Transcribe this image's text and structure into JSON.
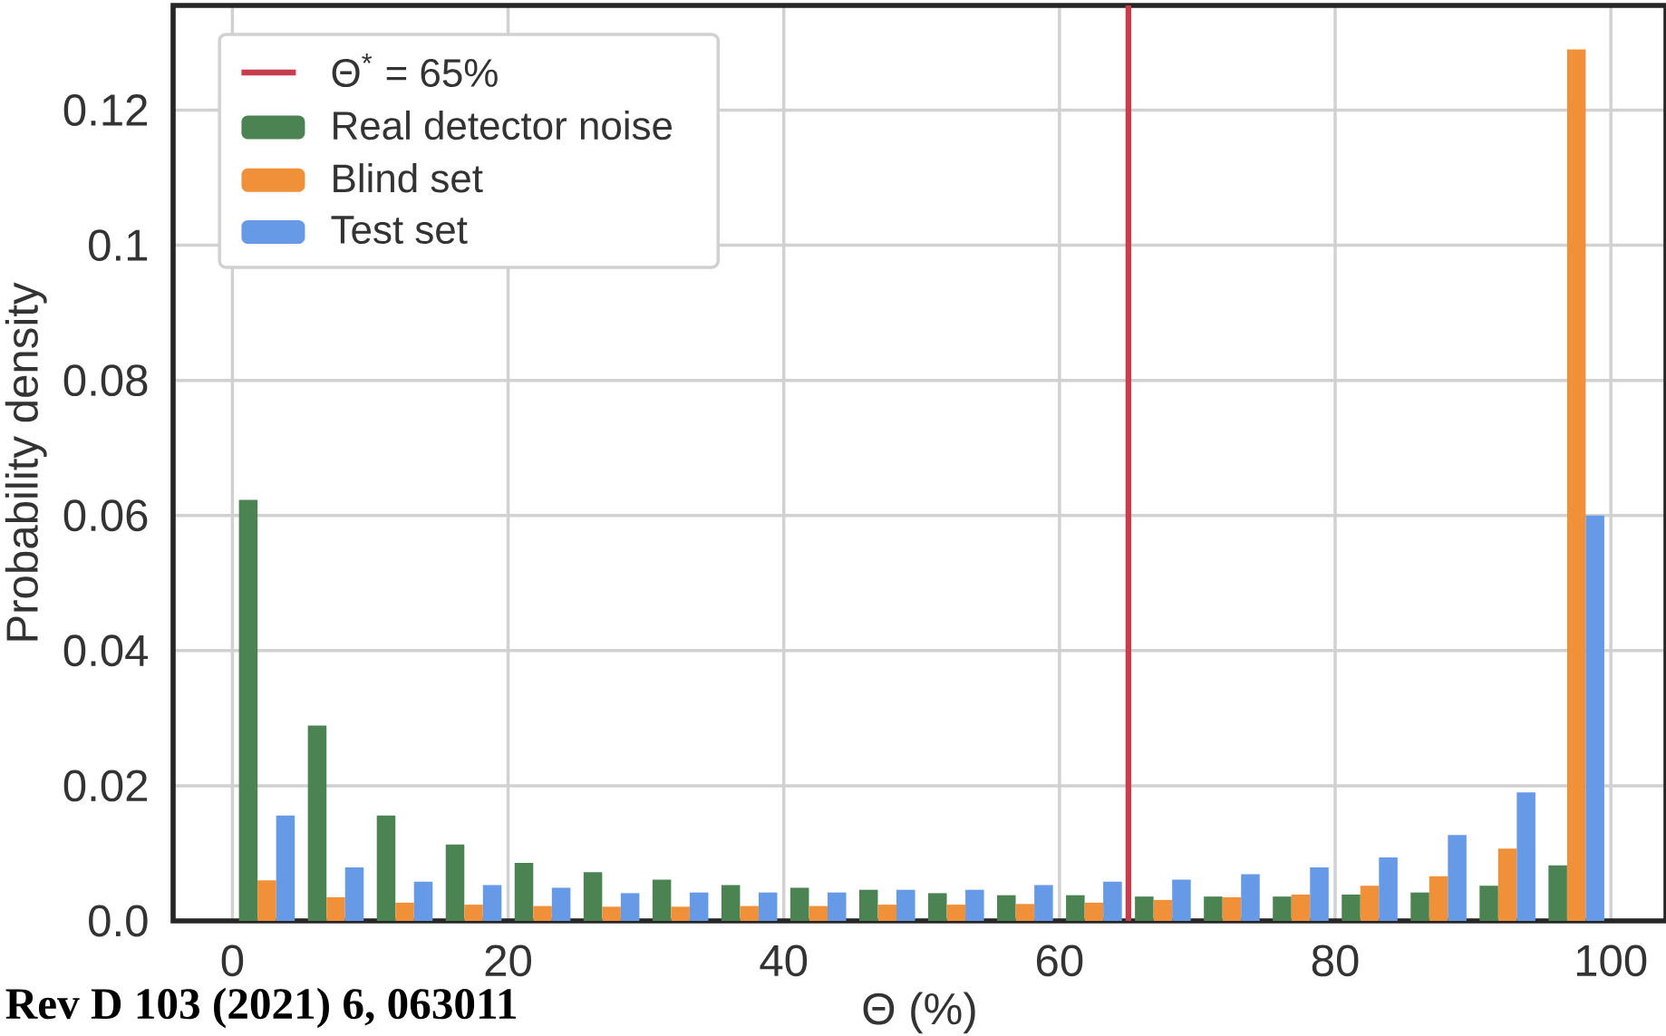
{
  "chart_data": {
    "type": "histogram",
    "xlabel": "Θ (%)",
    "ylabel": "Probability density",
    "bins": [
      0,
      5,
      10,
      15,
      20,
      25,
      30,
      35,
      40,
      45,
      50,
      55,
      60,
      65,
      70,
      75,
      80,
      85,
      90,
      95,
      100
    ],
    "series": [
      {
        "name": "Θ$^{*}$ = 65%",
        "type": "line",
        "color": "#c83c4b",
        "x": [
          65,
          65
        ],
        "values": [
          0,
          0.1355
        ]
      },
      {
        "name": "Real detector noise",
        "color": "#4b8452",
        "values": [
          0.0623,
          0.0289,
          0.0156,
          0.0113,
          0.0086,
          0.0072,
          0.0061,
          0.0053,
          0.0049,
          0.0046,
          0.0041,
          0.0038,
          0.0038,
          0.0036,
          0.0036,
          0.0036,
          0.0039,
          0.0042,
          0.0052,
          0.0082
        ]
      },
      {
        "name": "Blind set",
        "color": "#f0913a",
        "values": [
          0.006,
          0.0035,
          0.0027,
          0.0024,
          0.0022,
          0.0021,
          0.0021,
          0.0022,
          0.0022,
          0.0024,
          0.0024,
          0.0025,
          0.0027,
          0.0031,
          0.0035,
          0.0039,
          0.0052,
          0.0066,
          0.0107,
          0.129
        ]
      },
      {
        "name": "Test set",
        "color": "#6699e6",
        "values": [
          0.0156,
          0.0079,
          0.0058,
          0.0053,
          0.0049,
          0.0041,
          0.0042,
          0.0042,
          0.0042,
          0.0046,
          0.0046,
          0.0053,
          0.0058,
          0.0061,
          0.0069,
          0.0079,
          0.0094,
          0.0127,
          0.019,
          0.06
        ]
      }
    ],
    "line_style": "solid",
    "xlim": [
      -4.3,
      104
    ],
    "ylim": [
      0,
      0.1355
    ],
    "xticks": [
      0,
      20,
      40,
      60,
      80,
      100
    ],
    "yticks": [
      {
        "value": 0,
        "label": "0.0"
      },
      0.02,
      0.04,
      0.06,
      0.08,
      {
        "value": 0.1,
        "label": "0.1"
      },
      0.12
    ],
    "grid": true,
    "legend": "top left",
    "annotations": [
      "Rev D 103 (2021) 6, 063011"
    ]
  }
}
